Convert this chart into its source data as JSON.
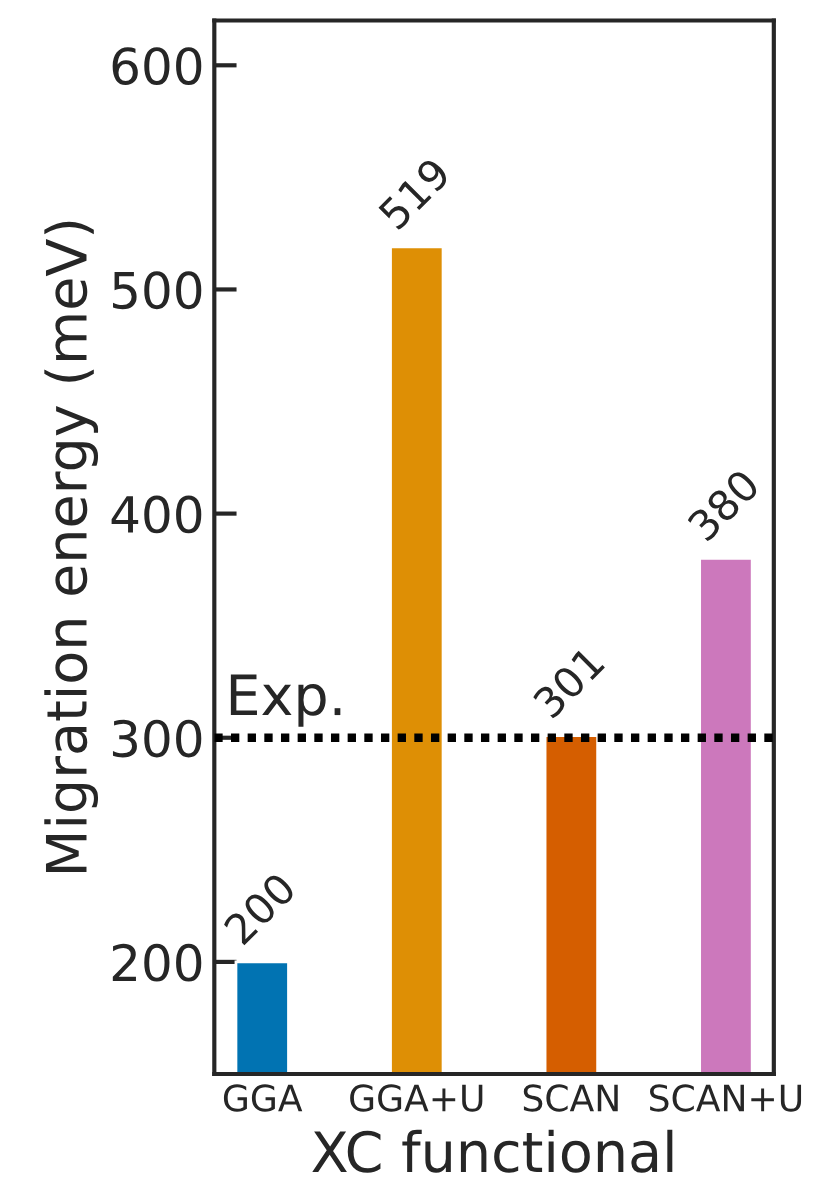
{
  "chart_data": {
    "type": "bar",
    "xlabel": "XC functional",
    "ylabel": "Migration energy (meV)",
    "categories": [
      "GGA",
      "GGA+U",
      "SCAN",
      "SCAN+U"
    ],
    "values": [
      200,
      519,
      301,
      380
    ],
    "colors": [
      "#0173b2",
      "#de8f05",
      "#d55e00",
      "#cc78bc"
    ],
    "ylim": [
      150,
      620
    ],
    "yticks": [
      200,
      300,
      400,
      500,
      600
    ],
    "data_labels": true,
    "ref_lines": [
      {
        "axis": "y",
        "value": 300,
        "label": "Exp.",
        "color": "#000000",
        "line_style": "dotted"
      }
    ]
  }
}
